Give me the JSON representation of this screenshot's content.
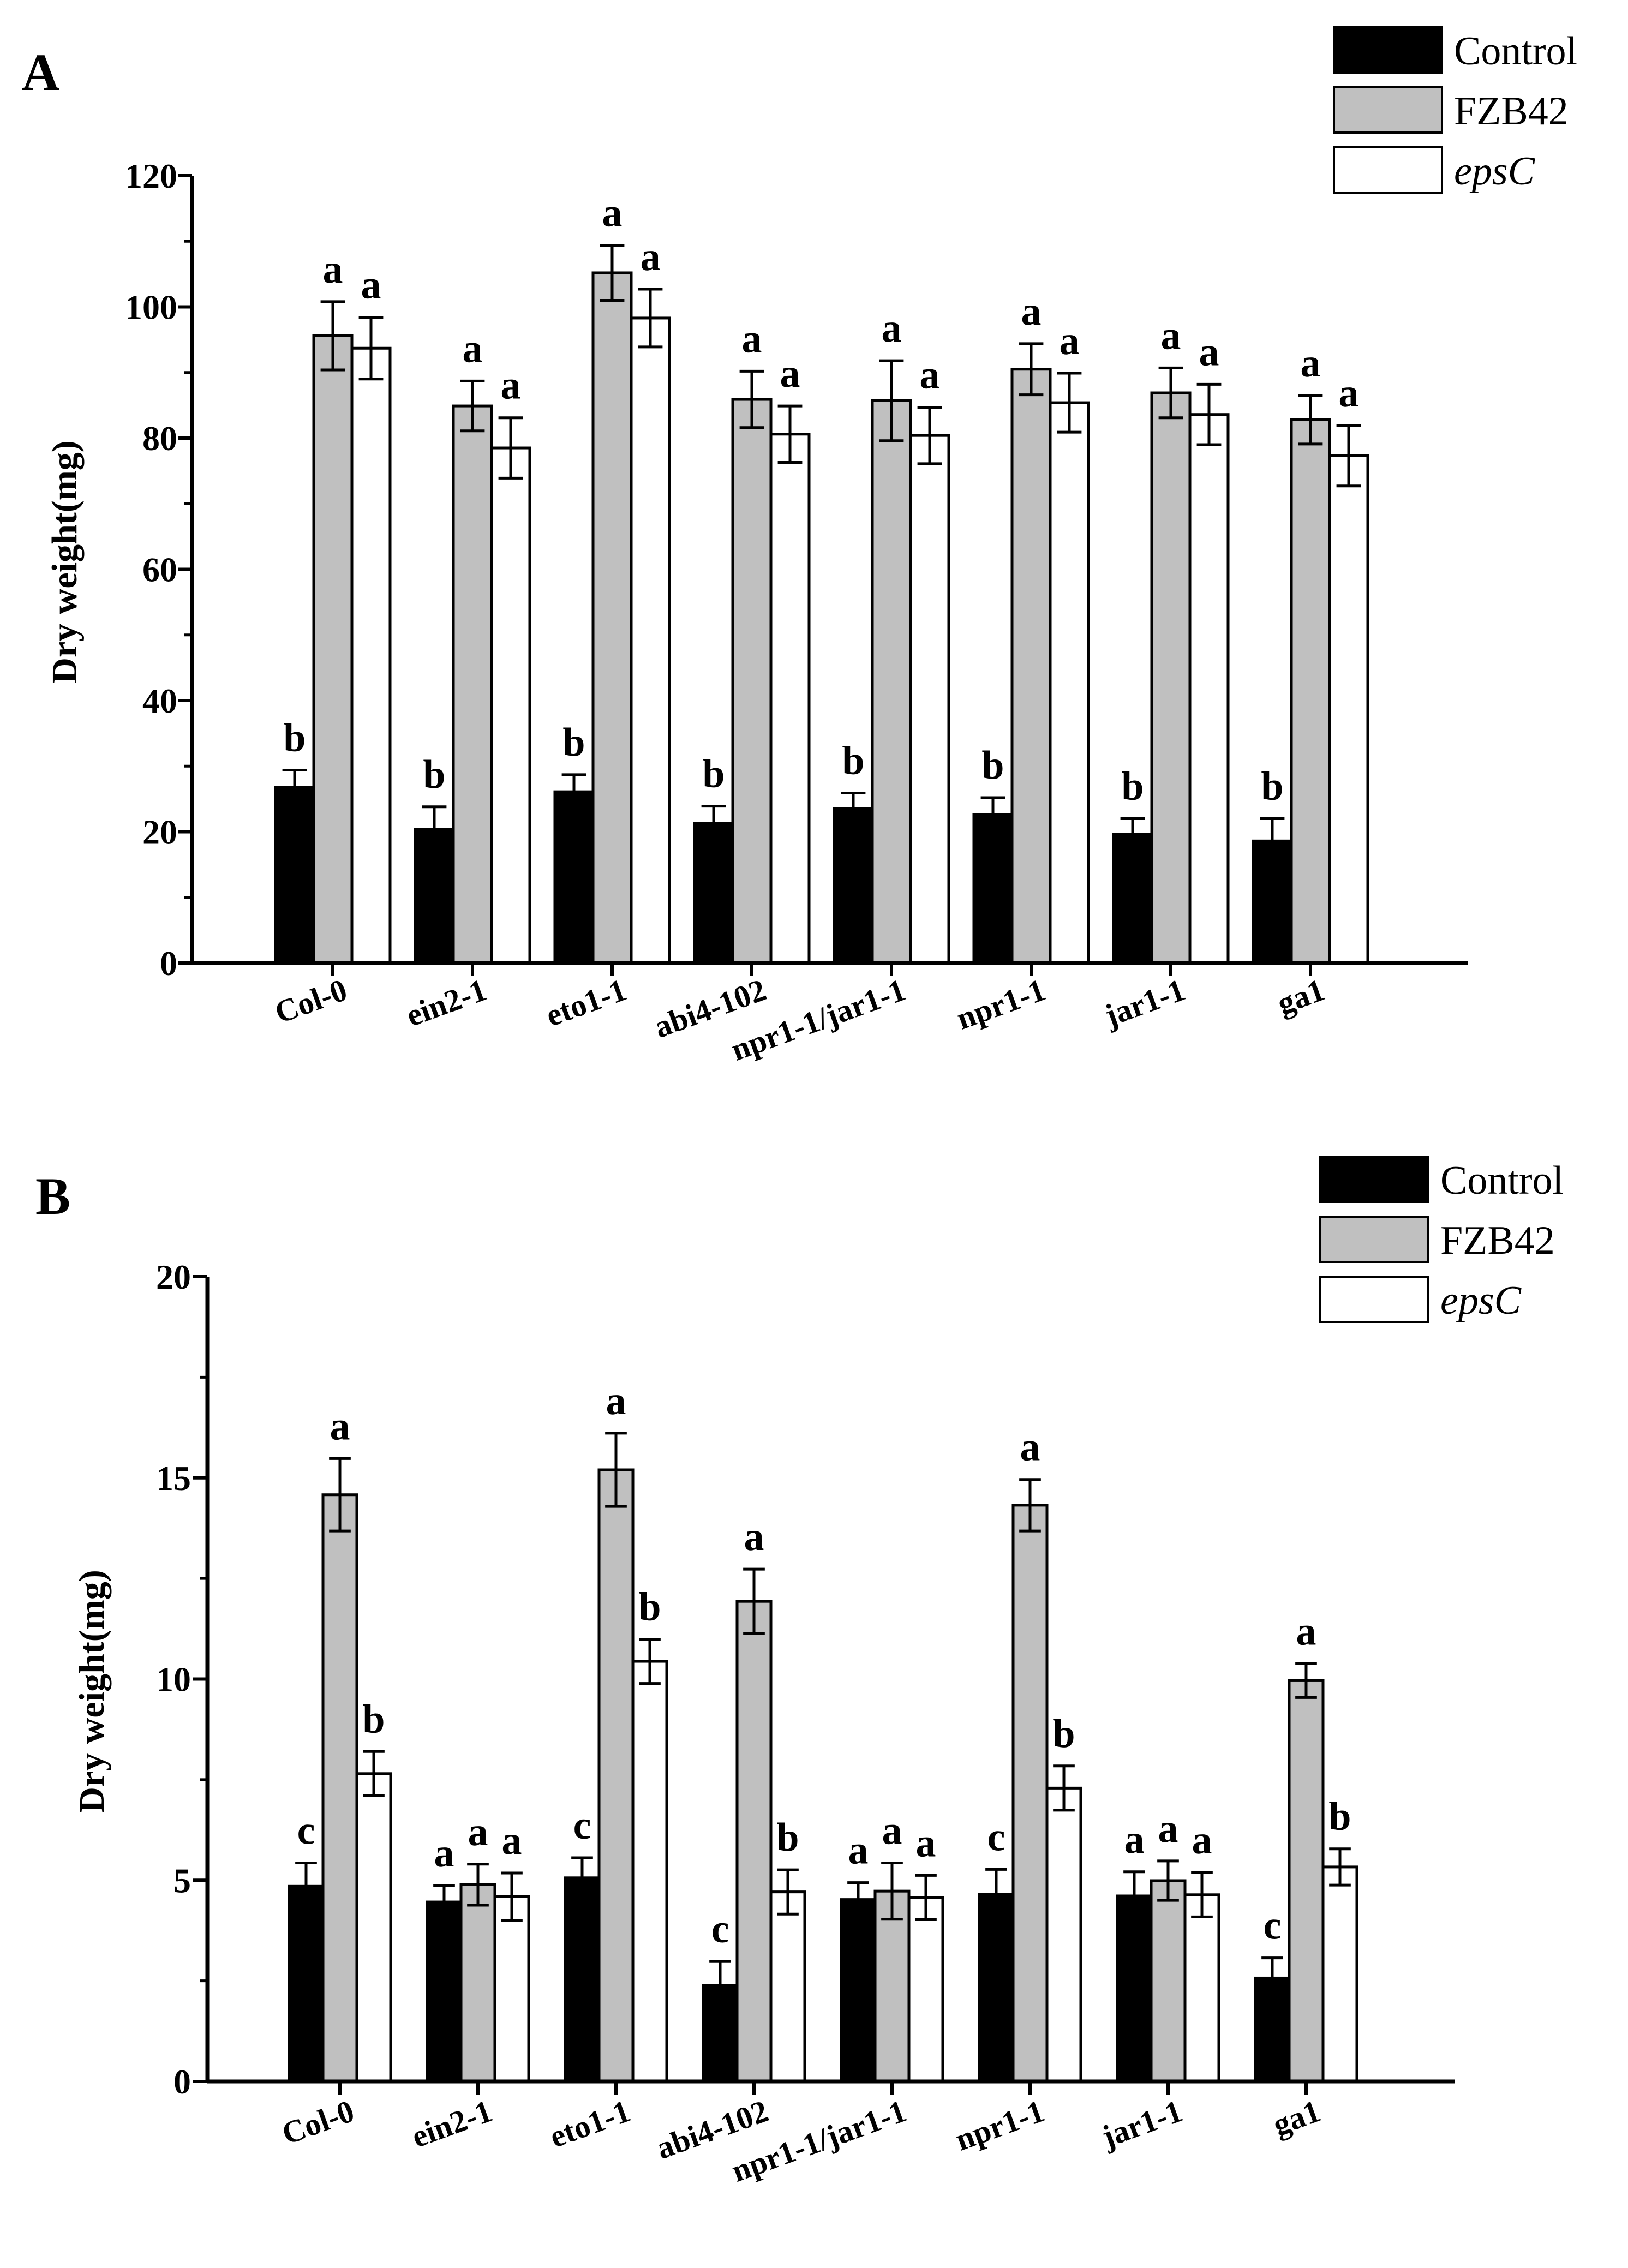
{
  "colors": {
    "control": "#000000",
    "fzb42": "#c0c0c0",
    "epsc": "#ffffff",
    "axis": "#000000"
  },
  "chart_data": [
    {
      "type": "bar",
      "panel_label": "A",
      "ylabel": "Dry weight(mg)",
      "xlabel": "",
      "ylim": [
        0,
        120
      ],
      "yticks": [
        0,
        20,
        40,
        60,
        80,
        100,
        120
      ],
      "categories": [
        "Col-0",
        "ein2-1",
        "eto1-1",
        "abi4-102",
        "npr1-1/jar1-1",
        "npr1-1",
        "jar1-1",
        "ga1"
      ],
      "legend": {
        "position": "top-right",
        "entries": [
          "Control",
          "FZB42",
          "epsC"
        ]
      },
      "series": [
        {
          "name": "Control",
          "values": [
            26.8,
            20.4,
            26.1,
            21.3,
            23.5,
            22.6,
            19.6,
            18.6
          ],
          "errors": [
            2.6,
            3.4,
            2.6,
            2.6,
            2.4,
            2.6,
            2.4,
            3.4
          ],
          "letters": [
            "b",
            "b",
            "b",
            "b",
            "b",
            "b",
            "b",
            "b"
          ]
        },
        {
          "name": "FZB42",
          "values": [
            95.6,
            84.9,
            105.2,
            85.9,
            85.7,
            90.5,
            86.9,
            82.8
          ],
          "errors": [
            5.2,
            3.8,
            4.2,
            4.3,
            6.1,
            3.9,
            3.8,
            3.7
          ],
          "letters": [
            "a",
            "a",
            "a",
            "a",
            "a",
            "a",
            "a",
            "a"
          ]
        },
        {
          "name": "epsC",
          "values": [
            93.7,
            78.5,
            98.3,
            80.6,
            80.4,
            85.4,
            83.6,
            77.3
          ],
          "errors": [
            4.7,
            4.6,
            4.4,
            4.3,
            4.3,
            4.5,
            4.6,
            4.6
          ],
          "letters": [
            "a",
            "a",
            "a",
            "a",
            "a",
            "a",
            "a",
            "a"
          ]
        }
      ]
    },
    {
      "type": "bar",
      "panel_label": "B",
      "ylabel": "Dry weight(mg)",
      "xlabel": "",
      "ylim": [
        0,
        20
      ],
      "yticks": [
        0,
        5,
        10,
        15,
        20
      ],
      "categories": [
        "Col-0",
        "ein2-1",
        "eto1-1",
        "abi4-102",
        "npr1-1/jar1-1",
        "npr1-1",
        "jar1-1",
        "ga1"
      ],
      "legend": {
        "position": "top-right",
        "entries": [
          "Control",
          "FZB42",
          "epsC"
        ]
      },
      "series": [
        {
          "name": "Control",
          "values": [
            4.85,
            4.46,
            5.06,
            2.38,
            4.52,
            4.65,
            4.61,
            2.57
          ],
          "errors": [
            0.58,
            0.41,
            0.5,
            0.6,
            0.42,
            0.62,
            0.6,
            0.5
          ],
          "letters": [
            "c",
            "a",
            "c",
            "c",
            "a",
            "c",
            "a",
            "c"
          ]
        },
        {
          "name": "FZB42",
          "values": [
            14.58,
            4.89,
            15.2,
            11.93,
            4.73,
            14.32,
            4.99,
            9.96
          ],
          "errors": [
            0.9,
            0.51,
            0.91,
            0.8,
            0.7,
            0.64,
            0.49,
            0.42
          ],
          "letters": [
            "a",
            "a",
            "a",
            "a",
            "a",
            "a",
            "a",
            "a"
          ]
        },
        {
          "name": "epsC",
          "values": [
            7.65,
            4.59,
            10.44,
            4.71,
            4.57,
            7.29,
            4.64,
            5.33
          ],
          "errors": [
            0.55,
            0.59,
            0.55,
            0.55,
            0.55,
            0.55,
            0.55,
            0.45
          ],
          "letters": [
            "b",
            "a",
            "b",
            "b",
            "a",
            "b",
            "a",
            "b"
          ]
        }
      ]
    }
  ]
}
